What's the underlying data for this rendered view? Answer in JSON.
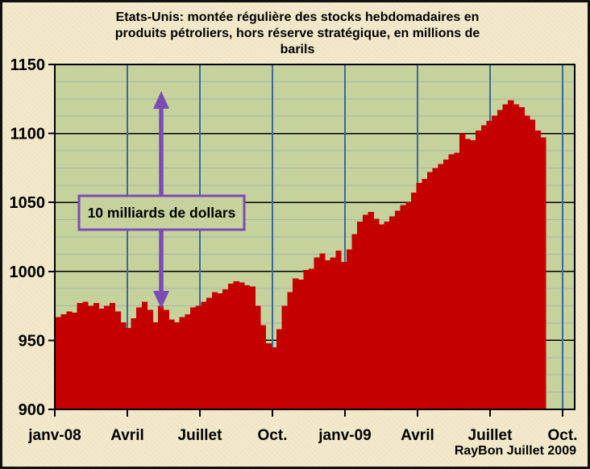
{
  "title_lines": [
    "Etats-Unis: montée régulière des stocks hebdomadaires en",
    "produits pétroliers, hors réserve stratégique,  en millions de",
    "barils"
  ],
  "credit": "RayBon Juillet  2009",
  "annotation": {
    "label": "10 milliards de dollars"
  },
  "colors": {
    "bar": "#c40000",
    "plot_bg": "#c5d29c",
    "page_bg": "#f2e8c9",
    "grid_major": "#000000",
    "grid_minor": "#a9b7a9",
    "grid_vertical": "#3c689a",
    "annotation_purple": "#7d4bb5",
    "border": "#000000",
    "text": "#000000"
  },
  "chart_data": {
    "type": "bar",
    "title": "Etats-Unis: montée régulière des stocks hebdomadaires en produits pétroliers, hors réserve stratégique, en millions de barils",
    "unit": "millions de barils",
    "frequency": "hebdomadaire",
    "xlabel": "",
    "ylabel": "",
    "ylim": [
      900,
      1150
    ],
    "y_ticks": [
      900,
      950,
      1000,
      1050,
      1100,
      1150
    ],
    "y_major_step": 50,
    "y_minor_step": 12.5,
    "grid": true,
    "legend": false,
    "x_tick_labels": [
      "janv-08",
      "Avril",
      "Juillet",
      "Oct.",
      "janv-09",
      "Avril",
      "Juillet",
      "Oct."
    ],
    "values": [
      967,
      969,
      971,
      970,
      977,
      978,
      975,
      977,
      973,
      975,
      977,
      971,
      963,
      959,
      966,
      974,
      978,
      972,
      963,
      975,
      972,
      965,
      963,
      967,
      969,
      974,
      975,
      978,
      981,
      985,
      984,
      987,
      991,
      993,
      992,
      990,
      989,
      975,
      961,
      948,
      945,
      958,
      975,
      985,
      995,
      994,
      1001,
      1002,
      1010,
      1013,
      1008,
      1010,
      1015,
      1007,
      1016,
      1027,
      1036,
      1041,
      1043,
      1038,
      1034,
      1036,
      1040,
      1044,
      1048,
      1050,
      1057,
      1064,
      1067,
      1072,
      1075,
      1078,
      1081,
      1085,
      1086,
      1100,
      1096,
      1095,
      1102,
      1106,
      1109,
      1113,
      1117,
      1121,
      1124,
      1121,
      1119,
      1113,
      1110,
      1102,
      1097
    ]
  }
}
